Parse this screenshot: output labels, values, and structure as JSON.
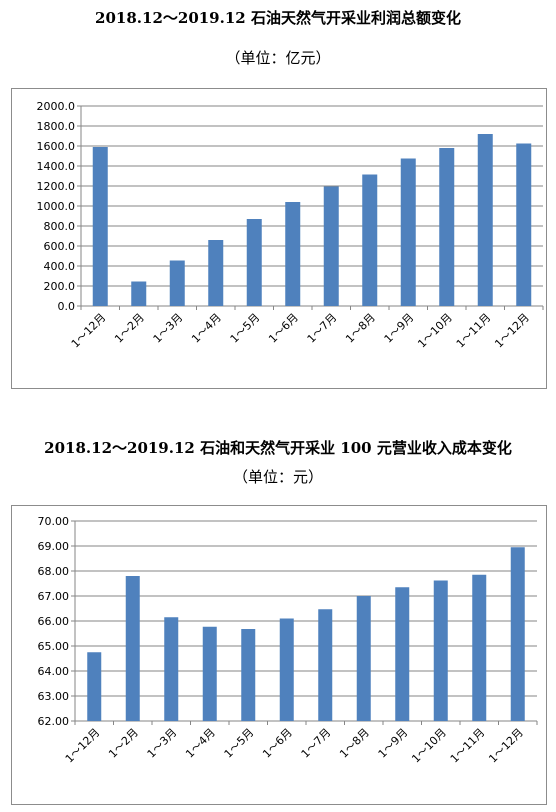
{
  "chart_data": [
    {
      "type": "bar",
      "title": "2018.12～2019.12 石油天然气开采业利润总额变化",
      "subtitle": "（单位：亿元）",
      "categories": [
        "1～12月",
        "1～2月",
        "1～3月",
        "1～4月",
        "1～5月",
        "1～6月",
        "1～7月",
        "1～8月",
        "1～9月",
        "1～10月",
        "1～11月",
        "1～12月"
      ],
      "values": [
        1590,
        245,
        455,
        660,
        870,
        1040,
        1195,
        1315,
        1475,
        1580,
        1720,
        1625
      ],
      "yticks": [
        "0.0",
        "200.0",
        "400.0",
        "600.0",
        "800.0",
        "1000.0",
        "1200.0",
        "1400.0",
        "1600.0",
        "1800.0",
        "2000.0"
      ],
      "ylim": [
        0,
        2000
      ],
      "grid": true,
      "bar_color": "#4f81bd"
    },
    {
      "type": "bar",
      "title": "2018.12～2019.12 石油和天然气开采业 100 元营业收入成本变化",
      "subtitle": "（单位：元）",
      "categories": [
        "1～12月",
        "1～2月",
        "1～3月",
        "1～4月",
        "1～5月",
        "1～6月",
        "1～7月",
        "1～8月",
        "1～9月",
        "1～10月",
        "1～11月",
        "1～12月"
      ],
      "values": [
        64.75,
        67.8,
        66.15,
        65.77,
        65.68,
        66.1,
        66.47,
        67.0,
        67.35,
        67.62,
        67.85,
        68.95
      ],
      "yticks": [
        "62.00",
        "63.00",
        "64.00",
        "65.00",
        "66.00",
        "67.00",
        "68.00",
        "69.00",
        "70.00"
      ],
      "ylim": [
        62,
        70
      ],
      "grid": true,
      "bar_color": "#4f81bd"
    }
  ]
}
